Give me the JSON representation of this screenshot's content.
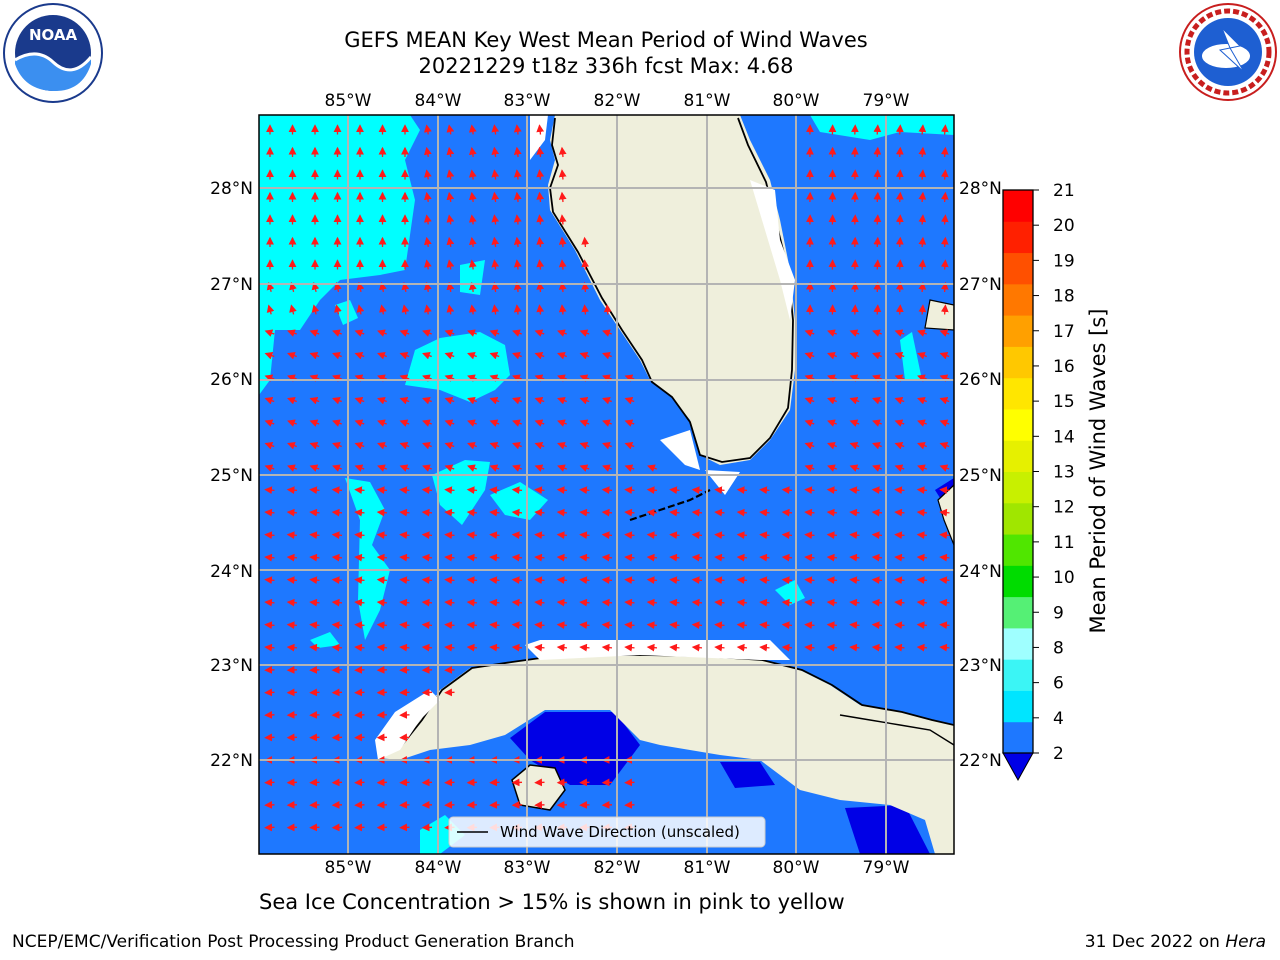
{
  "title_line1": "GEFS MEAN Key West Mean Period of Wind Waves",
  "title_line2": "20221229 t18z 336h fcst   Max: 4.68",
  "caption": "Sea Ice Concentration > 15% is shown in pink to yellow",
  "footer_left": "NCEP/EMC/Verification Post Processing Product Generation Branch",
  "footer_right_prefix": "31 Dec 2022 on ",
  "footer_right_host": "Hera",
  "logos": {
    "left": {
      "icon": "noaa-logo",
      "text": "NOAA",
      "ring_text": "NATIONAL OCEANIC AND ATMOSPHERIC ADMINISTRATION · U.S. DEPARTMENT OF COMMERCE"
    },
    "right": {
      "icon": "nws-logo",
      "ring_text": "NATIONAL WEATHER SERVICE"
    }
  },
  "map": {
    "lon_labels": [
      "85°W",
      "84°W",
      "83°W",
      "82°W",
      "81°W",
      "80°W",
      "79°W"
    ],
    "lat_labels": [
      "28°N",
      "27°N",
      "26°N",
      "25°N",
      "24°N",
      "23°N",
      "22°N"
    ],
    "legend_label": "Wind Wave Direction (unscaled)",
    "extent": {
      "lon_min": -86.0,
      "lon_max": -78.3,
      "lat_min": 21.0,
      "lat_max": 28.8
    },
    "land_color": "#efefdc",
    "ocean_base_color": "#1e78ff",
    "arrow_color": "#ff1a1a"
  },
  "colorbar": {
    "label": "Mean Period of Wind Waves [s]",
    "ticks": [
      "2",
      "4",
      "6",
      "8",
      "9",
      "10",
      "11",
      "12",
      "13",
      "14",
      "15",
      "16",
      "17",
      "18",
      "19",
      "20",
      "21"
    ],
    "colors": [
      "#1e78ff",
      "#00e5ff",
      "#3bf5f5",
      "#9fffff",
      "#55f075",
      "#00dc00",
      "#50e600",
      "#a0e600",
      "#c8f000",
      "#e6f000",
      "#ffff00",
      "#ffe600",
      "#ffc800",
      "#ffa000",
      "#ff7800",
      "#ff5000",
      "#ff2000",
      "#ff0000"
    ],
    "under_color": "#0000e6"
  }
}
